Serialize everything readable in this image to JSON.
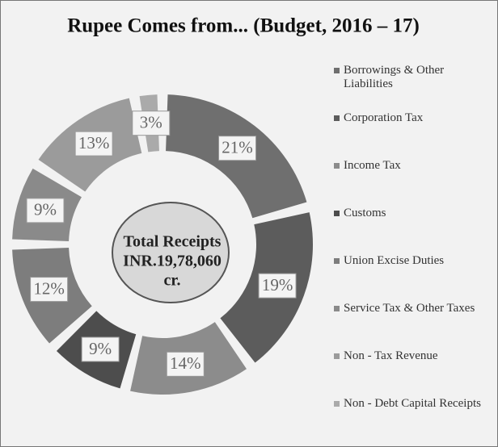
{
  "chart_data": {
    "type": "donut",
    "title": "Rupee Comes from... (Budget, 2016 – 17)",
    "categories": [
      "Borrowings & Other Liabilities",
      "Corporation Tax",
      "Income Tax",
      "Customs",
      "Union Excise Duties",
      "Service Tax & Other Taxes",
      "Non - Tax Revenue",
      "Non - Debt Capital Receipts"
    ],
    "values": [
      21,
      19,
      14,
      9,
      12,
      9,
      13,
      3
    ],
    "value_labels": [
      "21%",
      "19%",
      "14%",
      "9%",
      "12%",
      "9%",
      "13%",
      "3%"
    ],
    "colors": [
      "#6f6f6f",
      "#5c5c5c",
      "#8c8c8c",
      "#4d4d4d",
      "#7d7d7d",
      "#8a8a8a",
      "#9b9b9b",
      "#aaaaaa"
    ],
    "center_label": [
      "Total Receipts",
      "INR.19,78,060",
      "cr."
    ],
    "legend": "right"
  }
}
